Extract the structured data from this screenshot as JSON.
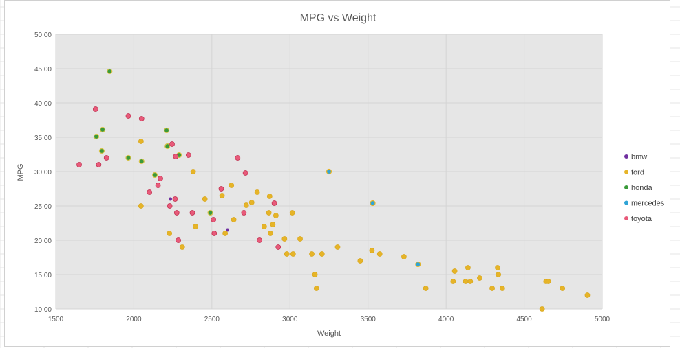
{
  "chart_data": {
    "type": "scatter",
    "title": "MPG vs Weight",
    "xlabel": "Weight",
    "ylabel": "MPG",
    "xlim": [
      1500,
      5000
    ],
    "ylim": [
      10,
      50
    ],
    "x_ticks": [
      "1500",
      "2000",
      "2500",
      "3000",
      "3500",
      "4000",
      "4500",
      "5000"
    ],
    "y_ticks": [
      "10.00",
      "15.00",
      "20.00",
      "25.00",
      "30.00",
      "35.00",
      "40.00",
      "45.00",
      "50.00"
    ],
    "x_tick_values": [
      1500,
      2000,
      2500,
      3000,
      3500,
      4000,
      4500,
      5000
    ],
    "y_tick_values": [
      10,
      15,
      20,
      25,
      30,
      35,
      40,
      45,
      50
    ],
    "grid": true,
    "legend_position": "right",
    "series": [
      {
        "name": "bmw",
        "color": "#7030a0",
        "points": [
          [
            2234,
            26
          ],
          [
            2600,
            21.5
          ]
        ]
      },
      {
        "name": "ford",
        "color": "#e6b428",
        "points": [
          [
            2046,
            34.4
          ],
          [
            2046,
            25
          ],
          [
            2380,
            30
          ],
          [
            2395,
            22
          ],
          [
            2228,
            21
          ],
          [
            2310,
            19
          ],
          [
            2455,
            26
          ],
          [
            2490,
            24
          ],
          [
            2565,
            26.5
          ],
          [
            2585,
            21
          ],
          [
            2625,
            28
          ],
          [
            2640,
            23
          ],
          [
            2720,
            25.1
          ],
          [
            2755,
            25.5
          ],
          [
            2790,
            27
          ],
          [
            2835,
            22
          ],
          [
            2865,
            24
          ],
          [
            2870,
            26.4
          ],
          [
            2875,
            21
          ],
          [
            2890,
            22.3
          ],
          [
            2910,
            23.6
          ],
          [
            2965,
            20.2
          ],
          [
            2980,
            18
          ],
          [
            3015,
            24
          ],
          [
            3020,
            18
          ],
          [
            3065,
            20.2
          ],
          [
            3140,
            18
          ],
          [
            3160,
            15
          ],
          [
            3170,
            13
          ],
          [
            3205,
            18
          ],
          [
            3305,
            19
          ],
          [
            3450,
            17
          ],
          [
            3525,
            18.5
          ],
          [
            3575,
            18
          ],
          [
            3730,
            17.6
          ],
          [
            3870,
            13
          ],
          [
            4045,
            14
          ],
          [
            4055,
            15.5
          ],
          [
            4125,
            14
          ],
          [
            4140,
            16
          ],
          [
            4155,
            14
          ],
          [
            4215,
            14.5
          ],
          [
            4295,
            13
          ],
          [
            4330,
            16
          ],
          [
            4335,
            15
          ],
          [
            4360,
            13
          ],
          [
            4615,
            10
          ],
          [
            4640,
            14
          ],
          [
            4655,
            14
          ],
          [
            4745,
            13
          ],
          [
            4905,
            12
          ]
        ]
      },
      {
        "name": "honda",
        "color": "#2e8b57",
        "points": [
          [
            1845,
            44.6
          ],
          [
            1760,
            35.1
          ],
          [
            1800,
            36.1
          ],
          [
            1795,
            33
          ],
          [
            1965,
            32
          ],
          [
            2050,
            31.5
          ],
          [
            2135,
            29.5
          ],
          [
            2210,
            36
          ],
          [
            2215,
            33.7
          ],
          [
            2290,
            32.4
          ],
          [
            2490,
            24
          ]
        ]
      },
      {
        "name": "mercedes",
        "color": "#2fa4d6",
        "points": [
          [
            3250,
            30
          ],
          [
            3530,
            25.4
          ],
          [
            3820,
            16.5
          ]
        ]
      },
      {
        "name": "toyota",
        "color": "#e85a7a",
        "points": [
          [
            1650,
            31
          ],
          [
            1755,
            39.1
          ],
          [
            1775,
            31
          ],
          [
            1825,
            32
          ],
          [
            1965,
            38.1
          ],
          [
            2050,
            37.7
          ],
          [
            2100,
            27
          ],
          [
            2155,
            28
          ],
          [
            2170,
            29
          ],
          [
            2230,
            25
          ],
          [
            2245,
            34
          ],
          [
            2265,
            26
          ],
          [
            2268,
            32.2
          ],
          [
            2275,
            24
          ],
          [
            2285,
            20
          ],
          [
            2350,
            32.4
          ],
          [
            2375,
            24
          ],
          [
            2510,
            23
          ],
          [
            2515,
            21
          ],
          [
            2560,
            27.5
          ],
          [
            2665,
            32
          ],
          [
            2705,
            24
          ],
          [
            2715,
            29.8
          ],
          [
            2805,
            20
          ],
          [
            2900,
            25.4
          ],
          [
            2925,
            19
          ]
        ]
      }
    ]
  }
}
